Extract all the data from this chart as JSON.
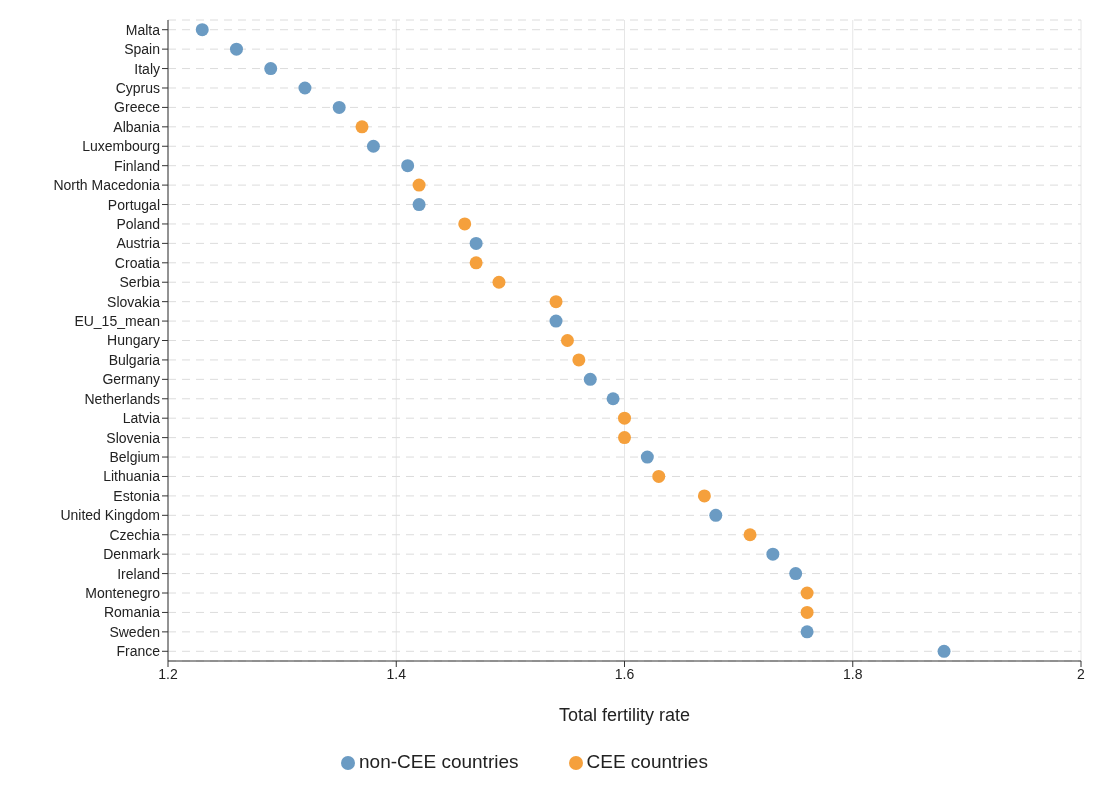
{
  "chart_data": {
    "type": "scatter",
    "orientation": "horizontal",
    "xlabel": "Total fertility rate",
    "categories": [
      "Malta",
      "Spain",
      "Italy",
      "Cyprus",
      "Greece",
      "Albania",
      "Luxembourg",
      "Finland",
      "North Macedonia",
      "Portugal",
      "Poland",
      "Austria",
      "Croatia",
      "Serbia",
      "Slovakia",
      "EU_15_mean",
      "Hungary",
      "Bulgaria",
      "Germany",
      "Netherlands",
      "Latvia",
      "Slovenia",
      "Belgium",
      "Lithuania",
      "Estonia",
      "United Kingdom",
      "Czechia",
      "Denmark",
      "Ireland",
      "Montenegro",
      "Romania",
      "Sweden",
      "France"
    ],
    "series": [
      {
        "name": "non-CEE countries",
        "color": "#6b9bc3",
        "values": [
          1.23,
          1.26,
          1.29,
          1.32,
          1.35,
          null,
          1.38,
          1.41,
          null,
          1.42,
          null,
          1.47,
          null,
          null,
          null,
          1.54,
          null,
          null,
          1.57,
          1.59,
          null,
          null,
          1.62,
          null,
          null,
          1.68,
          null,
          1.73,
          1.75,
          null,
          null,
          1.76,
          1.88
        ]
      },
      {
        "name": "CEE countries",
        "color": "#f5a03c",
        "values": [
          null,
          null,
          null,
          null,
          null,
          1.37,
          null,
          null,
          1.42,
          null,
          1.46,
          null,
          1.47,
          1.49,
          1.54,
          null,
          1.55,
          1.56,
          null,
          null,
          1.6,
          1.6,
          null,
          1.63,
          1.67,
          null,
          1.71,
          null,
          null,
          1.76,
          1.76,
          null,
          null
        ]
      }
    ],
    "xlim": [
      1.2,
      2
    ],
    "xticks": [
      1.2,
      1.4,
      1.6,
      1.8,
      2
    ],
    "grid": true,
    "legend": "bottom",
    "marker": "circle"
  }
}
